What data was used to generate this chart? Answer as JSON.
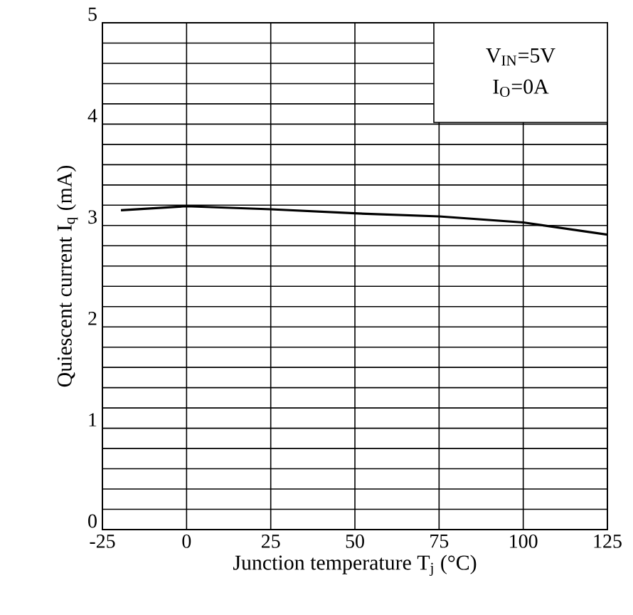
{
  "chart_data": {
    "type": "line",
    "xlabel": "Junction temperature T$_{j}$ (°C)",
    "ylabel": "Quiescent current I$_{q}$ (mA)",
    "annotations": [
      "V$_{IN}$=5V",
      "I$_{O}$=0A"
    ],
    "x": [
      -19.5,
      0,
      25,
      50,
      75,
      100,
      125
    ],
    "series": [
      {
        "color": "#000000",
        "values": [
          3.15,
          3.19,
          3.16,
          3.12,
          3.09,
          3.03,
          2.91
        ]
      }
    ],
    "xlim": [
      -25,
      125
    ],
    "xticks": [
      -25,
      0,
      25,
      50,
      75,
      100,
      125
    ],
    "ylim": [
      0,
      5
    ],
    "yticks": [
      0,
      {
        "value": 0.2,
        "label": null
      },
      {
        "value": 0.4,
        "label": null
      },
      {
        "value": 0.6,
        "label": null
      },
      {
        "value": 0.8,
        "label": null
      },
      1,
      {
        "value": 1.2,
        "label": null
      },
      {
        "value": 1.4,
        "label": null
      },
      {
        "value": 1.6,
        "label": null
      },
      {
        "value": 1.8,
        "label": null
      },
      2,
      {
        "value": 2.2,
        "label": null
      },
      {
        "value": 2.4,
        "label": null
      },
      {
        "value": 2.6,
        "label": null
      },
      {
        "value": 2.8,
        "label": null
      },
      3,
      {
        "value": 3.2,
        "label": null
      },
      {
        "value": 3.4,
        "label": null
      },
      {
        "value": 3.6,
        "label": null
      },
      {
        "value": 3.8,
        "label": null
      },
      4,
      {
        "value": 4.2,
        "label": null
      },
      {
        "value": 4.4,
        "label": null
      },
      {
        "value": 4.6,
        "label": null
      },
      {
        "value": 4.8,
        "label": null
      },
      5
    ],
    "grid": true,
    "marker": "none",
    "line_style": "solid"
  }
}
